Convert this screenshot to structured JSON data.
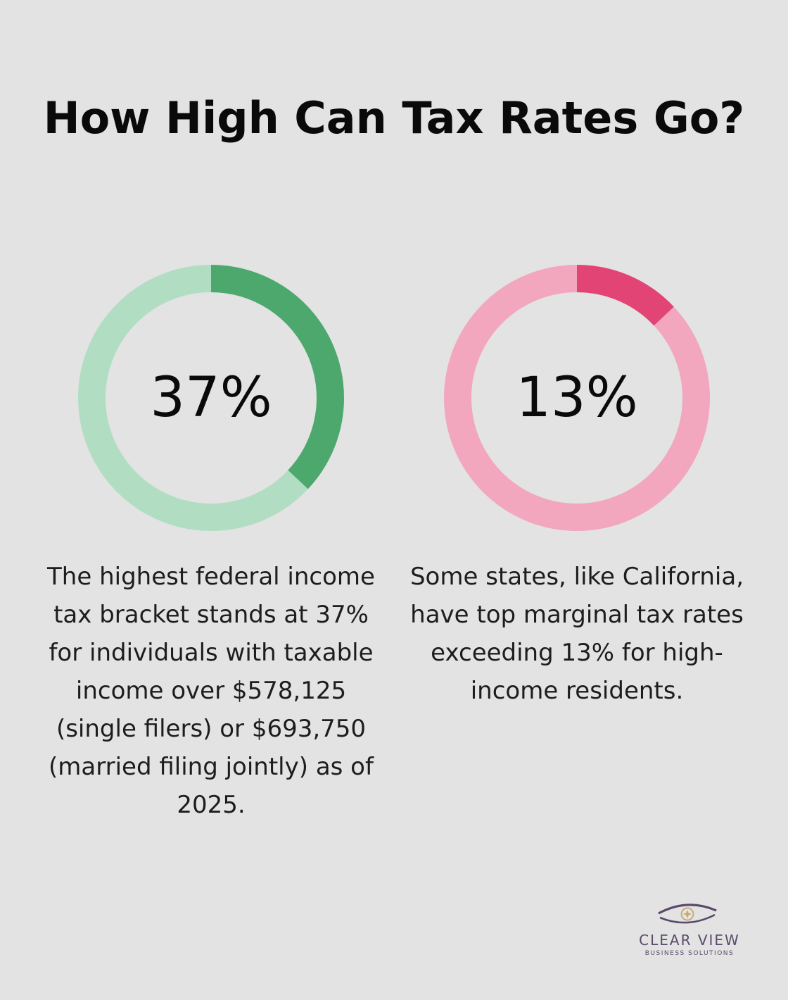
{
  "title": "How High Can Tax Rates Go?",
  "chart_data": [
    {
      "type": "pie",
      "variant": "donut",
      "value_label": "37%",
      "values": [
        37,
        63
      ],
      "colors": [
        "#4da86e",
        "#b1dec3"
      ],
      "description": "The highest federal income tax bracket stands at 37% for individuals with taxable income over $578,125 (single filers) or $693,750 (married filing jointly) as of 2025."
    },
    {
      "type": "pie",
      "variant": "donut",
      "value_label": "13%",
      "values": [
        13,
        87
      ],
      "colors": [
        "#e34476",
        "#f2a7bf"
      ],
      "description": "Some states, like California, have top marginal tax rates exceeding 13% for high-income residents."
    }
  ],
  "logo": {
    "name": "CLEAR VIEW",
    "tagline": "BUSINESS SOLUTIONS",
    "accent_colors": [
      "#5b4a6b",
      "#c9a66b"
    ]
  }
}
